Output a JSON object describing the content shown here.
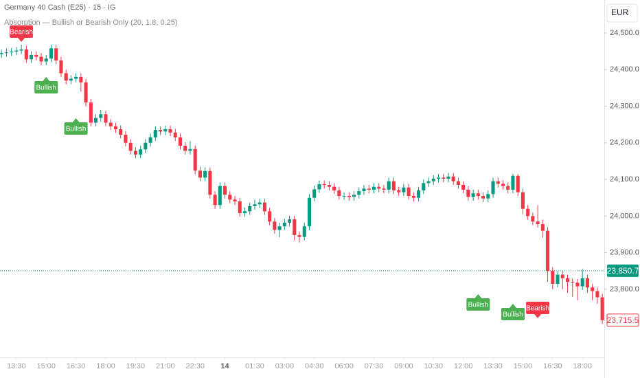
{
  "chart_data": {
    "type": "candlestick",
    "title": "Germany 40 Cash (E25) · 15 · IG",
    "subtitle": "Absorption — Bullish or Bearish Only (20, 1.8, 0.25)",
    "currency": "EUR",
    "up_color": "#089981",
    "down_color": "#f23645",
    "xlim": [
      -0.3,
      121.4
    ],
    "ylim": [
      23614,
      24590
    ],
    "xticks": [
      {
        "value": 3,
        "label": "13:30"
      },
      {
        "value": 9,
        "label": "15:00"
      },
      {
        "value": 15,
        "label": "16:30"
      },
      {
        "value": 21,
        "label": "18:00"
      },
      {
        "value": 27,
        "label": "19:30"
      },
      {
        "value": 33,
        "label": "21:00"
      },
      {
        "value": 39,
        "label": "22:30"
      },
      {
        "value": 45,
        "label": "14",
        "bold": true
      },
      {
        "value": 51,
        "label": "01:30"
      },
      {
        "value": 57,
        "label": "03:00"
      },
      {
        "value": 63,
        "label": "04:30"
      },
      {
        "value": 69,
        "label": "06:00"
      },
      {
        "value": 75,
        "label": "07:30"
      },
      {
        "value": 81,
        "label": "09:00"
      },
      {
        "value": 87,
        "label": "10:30"
      },
      {
        "value": 93,
        "label": "12:00"
      },
      {
        "value": 99,
        "label": "13:30"
      },
      {
        "value": 105,
        "label": "15:00"
      },
      {
        "value": 111,
        "label": "16:30"
      },
      {
        "value": 117,
        "label": "18:00"
      }
    ],
    "yticks": [
      {
        "value": 23800,
        "label": "23,800.0"
      },
      {
        "value": 23900,
        "label": "23,900.0"
      },
      {
        "value": 24000,
        "label": "24,000.0"
      },
      {
        "value": 24100,
        "label": "24,100.0"
      },
      {
        "value": 24200,
        "label": "24,200.0"
      },
      {
        "value": 24300,
        "label": "24,300.0"
      },
      {
        "value": 24400,
        "label": "24,400.0"
      },
      {
        "value": 24500,
        "label": "24,500.0"
      }
    ],
    "open": [
      24442,
      24445,
      24447,
      24449,
      24452,
      24455,
      24428,
      24440,
      24435,
      24422,
      24430,
      24458,
      24425,
      24390,
      24370,
      24375,
      24380,
      24365,
      24310,
      24255,
      24268,
      24278,
      24255,
      24245,
      24237,
      24222,
      24200,
      24178,
      24168,
      24182,
      24200,
      24215,
      24235,
      24231,
      24237,
      24228,
      24215,
      24192,
      24178,
      24183,
      24124,
      24105,
      24123,
      24058,
      24030,
      24082,
      24058,
      24045,
      24040,
      24008,
      24013,
      24027,
      24032,
      24037,
      24013,
      23985,
      23962,
      23972,
      23982,
      23991,
      23948,
      23943,
      23972,
      24050,
      24073,
      24087,
      24085,
      24080,
      24070,
      24055,
      24055,
      24052,
      24058,
      24068,
      24075,
      24072,
      24080,
      24075,
      24072,
      24095,
      24070,
      24065,
      24078,
      24055,
      24050,
      24070,
      24090,
      24095,
      24102,
      24105,
      24102,
      24108,
      24095,
      24085,
      24072,
      24052,
      24062,
      24055,
      24048,
      24060,
      24095,
      24088,
      24082,
      24072,
      24110,
      24065,
      24020,
      24000,
      23985,
      23978,
      23960,
      23850,
      23815,
      23840,
      23830,
      23820,
      23818,
      23808,
      23830,
      23805,
      23795,
      23778
    ],
    "high": [
      24455,
      24457,
      24459,
      24462,
      24468,
      24465,
      24450,
      24450,
      24445,
      24440,
      24468,
      24468,
      24435,
      24400,
      24385,
      24390,
      24390,
      24375,
      24320,
      24278,
      24290,
      24288,
      24265,
      24255,
      24247,
      24232,
      24210,
      24188,
      24192,
      24210,
      24225,
      24245,
      24245,
      24247,
      24247,
      24238,
      24225,
      24202,
      24205,
      24193,
      24134,
      24133,
      24133,
      24068,
      24092,
      24092,
      24068,
      24055,
      24050,
      24023,
      24037,
      24045,
      24047,
      24047,
      24023,
      23995,
      23982,
      23992,
      24001,
      24001,
      23958,
      23982,
      24060,
      24083,
      24097,
      24097,
      24095,
      24090,
      24080,
      24065,
      24065,
      24068,
      24078,
      24085,
      24085,
      24090,
      24090,
      24085,
      24105,
      24105,
      24080,
      24088,
      24088,
      24065,
      24080,
      24100,
      24105,
      24112,
      24115,
      24115,
      24118,
      24118,
      24105,
      24095,
      24082,
      24072,
      24072,
      24065,
      24070,
      24105,
      24105,
      24098,
      24092,
      24115,
      24115,
      24075,
      24030,
      24010,
      24030,
      23990,
      23970,
      23860,
      23850,
      23850,
      23840,
      23830,
      23828,
      23855,
      23840,
      23815,
      23805,
      23788
    ],
    "low": [
      24432,
      24435,
      24437,
      24439,
      24442,
      24418,
      24418,
      24425,
      24412,
      24412,
      24420,
      24415,
      24380,
      24360,
      24360,
      24365,
      24340,
      24300,
      24245,
      24245,
      24258,
      24245,
      24235,
      24227,
      24212,
      24190,
      24168,
      24158,
      24158,
      24172,
      24190,
      24205,
      24221,
      24221,
      24218,
      24205,
      24182,
      24168,
      24168,
      24114,
      24095,
      24095,
      24048,
      24020,
      24020,
      24048,
      24035,
      24030,
      23998,
      23998,
      24003,
      24017,
      24022,
      24003,
      23975,
      23952,
      23942,
      23962,
      23972,
      23933,
      23928,
      23933,
      23962,
      24040,
      24063,
      24075,
      24070,
      24060,
      24045,
      24045,
      24042,
      24042,
      24048,
      24058,
      24062,
      24062,
      24065,
      24062,
      24062,
      24060,
      24055,
      24055,
      24045,
      24040,
      24040,
      24060,
      24080,
      24085,
      24092,
      24092,
      24092,
      24085,
      24075,
      24062,
      24042,
      24042,
      24045,
      24038,
      24038,
      24050,
      24078,
      24072,
      24062,
      24062,
      24055,
      24005,
      23990,
      23975,
      23968,
      23940,
      23820,
      23800,
      23805,
      23800,
      23790,
      23780,
      23770,
      23798,
      23790,
      23770,
      23760,
      23705
    ],
    "close": [
      24445,
      24447,
      24449,
      24452,
      24455,
      24428,
      24440,
      24435,
      24422,
      24430,
      24458,
      24425,
      24390,
      24370,
      24375,
      24380,
      24365,
      24310,
      24255,
      24268,
      24278,
      24255,
      24245,
      24237,
      24222,
      24200,
      24178,
      24168,
      24182,
      24200,
      24215,
      24235,
      24231,
      24237,
      24228,
      24215,
      24192,
      24178,
      24183,
      24124,
      24105,
      24123,
      24058,
      24030,
      24082,
      24058,
      24045,
      24040,
      24008,
      24013,
      24027,
      24032,
      24037,
      24013,
      23985,
      23962,
      23972,
      23982,
      23991,
      23948,
      23943,
      23972,
      24050,
      24073,
      24087,
      24085,
      24080,
      24070,
      24055,
      24055,
      24052,
      24058,
      24068,
      24075,
      24072,
      24080,
      24075,
      24072,
      24095,
      24070,
      24065,
      24078,
      24055,
      24050,
      24070,
      24090,
      24095,
      24102,
      24105,
      24102,
      24108,
      24095,
      24085,
      24072,
      24052,
      24062,
      24055,
      24048,
      24060,
      24095,
      24088,
      24082,
      24072,
      24110,
      24065,
      24020,
      24000,
      23985,
      23978,
      23960,
      23850,
      23815,
      23840,
      23830,
      23820,
      23818,
      23808,
      23830,
      23805,
      23795,
      23778,
      23715.5
    ],
    "signals": [
      {
        "label": "Bearish",
        "x": 4,
        "color": "#f23645"
      },
      {
        "label": "Bullish",
        "x": 9,
        "color": "#4caf50"
      },
      {
        "label": "Bullish",
        "x": 15,
        "color": "#4caf50"
      },
      {
        "label": "Bullish",
        "x": 96,
        "color": "#4caf50"
      },
      {
        "label": "Bullish",
        "x": 103,
        "color": "#4caf50"
      },
      {
        "label": "Bearish",
        "x": 108,
        "color": "#f23645"
      }
    ],
    "price_line": {
      "value": 23850.7,
      "label": "23,850.7",
      "color": "#089981"
    },
    "last_price": {
      "value": 23715.5,
      "label": "23,715.5",
      "color": "#f23645"
    }
  }
}
